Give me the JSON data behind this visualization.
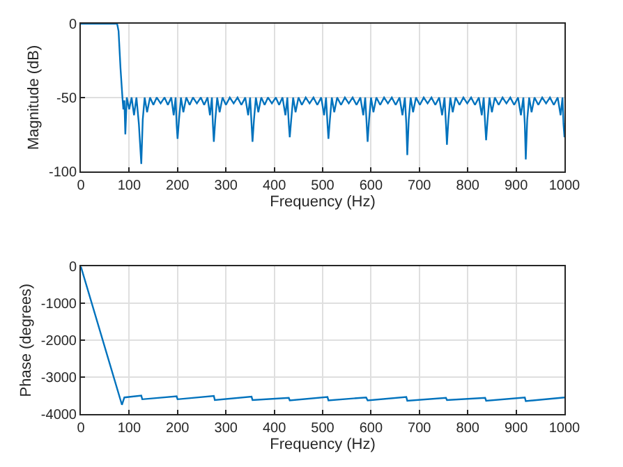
{
  "chart_data": [
    {
      "type": "line",
      "xlabel": "Frequency (Hz)",
      "ylabel": "Magnitude (dB)",
      "xlim": [
        0,
        1000
      ],
      "ylim": [
        -100,
        0
      ],
      "xticks": [
        0,
        100,
        200,
        300,
        400,
        500,
        600,
        700,
        800,
        900,
        1000
      ],
      "yticks": [
        -100,
        -50,
        0
      ],
      "grid": true,
      "series": [
        {
          "color": "#0072bd",
          "x": [
            0,
            20,
            40,
            60,
            75,
            78,
            82,
            86,
            88,
            90,
            92,
            95,
            100,
            105,
            110,
            115,
            120,
            125,
            128,
            132,
            137,
            143,
            150,
            157,
            165,
            173,
            180,
            187,
            192,
            196,
            198,
            200,
            203,
            207,
            212,
            218,
            225,
            232,
            240,
            248,
            255,
            262,
            267,
            271,
            273,
            275,
            278,
            282,
            287,
            293,
            300,
            308,
            316,
            324,
            332,
            340,
            346,
            350,
            353,
            355,
            358,
            362,
            367,
            373,
            380,
            387,
            395,
            403,
            410,
            417,
            423,
            427,
            430,
            432,
            435,
            439,
            444,
            450,
            457,
            465,
            473,
            481,
            489,
            497,
            503,
            507,
            510,
            512,
            515,
            519,
            524,
            530,
            538,
            546,
            554,
            562,
            570,
            578,
            584,
            588,
            591,
            593,
            596,
            600,
            605,
            611,
            619,
            627,
            635,
            643,
            651,
            659,
            665,
            670,
            673,
            675,
            678,
            682,
            687,
            693,
            701,
            709,
            717,
            725,
            733,
            741,
            747,
            752,
            755,
            757,
            760,
            764,
            769,
            775,
            783,
            791,
            799,
            807,
            815,
            823,
            829,
            833,
            836,
            838,
            841,
            845,
            850,
            856,
            864,
            872,
            880,
            888,
            896,
            904,
            910,
            915,
            918,
            920,
            923,
            927,
            932,
            938,
            946,
            954,
            962,
            970,
            978,
            986,
            992,
            996,
            998,
            1000
          ],
          "values": [
            0,
            0,
            0,
            0,
            0,
            -5,
            -30,
            -50,
            -58,
            -52,
            -75,
            -50,
            -58,
            -50,
            -62,
            -50,
            -68,
            -95,
            -65,
            -50,
            -60,
            -50,
            -55,
            -50,
            -54,
            -50,
            -55,
            -50,
            -62,
            -50,
            -68,
            -78,
            -65,
            -50,
            -60,
            -50,
            -55,
            -50,
            -54,
            -50,
            -55,
            -50,
            -62,
            -50,
            -68,
            -80,
            -65,
            -50,
            -60,
            -50,
            -55,
            -50,
            -54,
            -50,
            -55,
            -50,
            -62,
            -50,
            -68,
            -80,
            -65,
            -50,
            -60,
            -50,
            -55,
            -50,
            -54,
            -50,
            -55,
            -50,
            -62,
            -50,
            -68,
            -77,
            -65,
            -50,
            -60,
            -50,
            -55,
            -50,
            -54,
            -50,
            -55,
            -50,
            -62,
            -50,
            -68,
            -78,
            -65,
            -50,
            -60,
            -50,
            -55,
            -50,
            -54,
            -50,
            -55,
            -50,
            -62,
            -50,
            -68,
            -80,
            -65,
            -50,
            -60,
            -50,
            -55,
            -50,
            -54,
            -50,
            -55,
            -50,
            -62,
            -50,
            -68,
            -89,
            -65,
            -50,
            -60,
            -50,
            -55,
            -50,
            -54,
            -50,
            -55,
            -50,
            -62,
            -50,
            -68,
            -82,
            -65,
            -50,
            -60,
            -50,
            -55,
            -50,
            -54,
            -50,
            -55,
            -50,
            -62,
            -50,
            -68,
            -79,
            -65,
            -50,
            -60,
            -50,
            -55,
            -50,
            -54,
            -50,
            -55,
            -50,
            -62,
            -50,
            -68,
            -92,
            -65,
            -50,
            -60,
            -50,
            -55,
            -50,
            -54,
            -50,
            -55,
            -50,
            -62,
            -50,
            -68,
            -77
          ]
        }
      ]
    },
    {
      "type": "line",
      "xlabel": "Frequency (Hz)",
      "ylabel": "Phase (degrees)",
      "xlim": [
        0,
        1000
      ],
      "ylim": [
        -4000,
        0
      ],
      "xticks": [
        0,
        100,
        200,
        300,
        400,
        500,
        600,
        700,
        800,
        900,
        1000
      ],
      "yticks": [
        -4000,
        -3000,
        -2000,
        -1000,
        0
      ],
      "grid": true,
      "series": [
        {
          "color": "#0072bd",
          "x": [
            0,
            85,
            90,
            125,
            127,
            198,
            200,
            275,
            277,
            353,
            355,
            430,
            432,
            510,
            512,
            590,
            593,
            673,
            675,
            755,
            757,
            836,
            838,
            918,
            920,
            1000
          ],
          "values": [
            0,
            -3750,
            -3550,
            -3500,
            -3600,
            -3520,
            -3600,
            -3510,
            -3620,
            -3530,
            -3620,
            -3560,
            -3630,
            -3540,
            -3630,
            -3550,
            -3630,
            -3540,
            -3640,
            -3560,
            -3620,
            -3560,
            -3640,
            -3550,
            -3650,
            -3550
          ]
        }
      ]
    }
  ]
}
